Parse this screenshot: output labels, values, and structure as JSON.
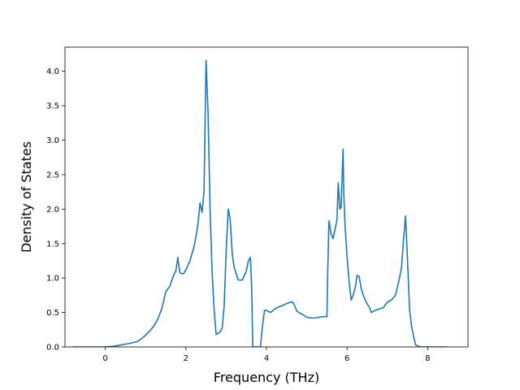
{
  "chart_data": {
    "type": "line",
    "title": "",
    "xlabel": "Frequency (THz)",
    "ylabel": "Density of States",
    "xlim": [
      -1.0,
      9.0
    ],
    "ylim": [
      0.0,
      4.35
    ],
    "grid": false,
    "x_ticks": [
      0,
      2,
      4,
      6,
      8
    ],
    "y_ticks": [
      0.0,
      0.5,
      1.0,
      1.5,
      2.0,
      2.5,
      3.0,
      3.5,
      4.0
    ],
    "color": "#1f77b4",
    "series": [
      {
        "x": [
          -0.8,
          -0.5,
          -0.2,
          0.0,
          0.2,
          0.4,
          0.6,
          0.8,
          0.9,
          1.0,
          1.1,
          1.2,
          1.3,
          1.4,
          1.5,
          1.6,
          1.7,
          1.75,
          1.8,
          1.82,
          1.85,
          1.9,
          1.95,
          2.0,
          2.1,
          2.2,
          2.25,
          2.3,
          2.35,
          2.4,
          2.45,
          2.5,
          2.55,
          2.6,
          2.65,
          2.7,
          2.75,
          2.8,
          2.85,
          2.9,
          2.95,
          3.0,
          3.05,
          3.1,
          3.15,
          3.2,
          3.3,
          3.4,
          3.5,
          3.55,
          3.6,
          3.63,
          3.66,
          3.7,
          3.75,
          3.8,
          3.85,
          3.9,
          3.95,
          4.0,
          4.1,
          4.2,
          4.3,
          4.4,
          4.5,
          4.6,
          4.65,
          4.7,
          4.75,
          4.8,
          4.9,
          5.0,
          5.1,
          5.2,
          5.3,
          5.4,
          5.5,
          5.52,
          5.55,
          5.6,
          5.65,
          5.7,
          5.75,
          5.78,
          5.82,
          5.85,
          5.88,
          5.9,
          5.92,
          5.95,
          6.0,
          6.05,
          6.1,
          6.15,
          6.2,
          6.25,
          6.3,
          6.35,
          6.4,
          6.5,
          6.55,
          6.6,
          6.7,
          6.8,
          6.9,
          7.0,
          7.1,
          7.2,
          7.3,
          7.35,
          7.4,
          7.45,
          7.5,
          7.55,
          7.6,
          7.65,
          7.7,
          7.8,
          8.0,
          8.2,
          8.5
        ],
        "y": [
          0.0,
          0.0,
          0.0,
          0.0,
          0.01,
          0.03,
          0.05,
          0.08,
          0.12,
          0.17,
          0.23,
          0.3,
          0.4,
          0.55,
          0.8,
          0.88,
          1.05,
          1.1,
          1.3,
          1.2,
          1.08,
          1.06,
          1.07,
          1.12,
          1.25,
          1.45,
          1.6,
          1.78,
          2.09,
          1.95,
          2.25,
          4.16,
          3.4,
          2.0,
          1.1,
          0.55,
          0.18,
          0.2,
          0.22,
          0.27,
          0.6,
          1.4,
          2.0,
          1.85,
          1.35,
          1.15,
          0.97,
          0.97,
          1.1,
          1.25,
          1.3,
          0.9,
          0.0,
          0.0,
          0.0,
          0.0,
          0.0,
          0.3,
          0.53,
          0.53,
          0.5,
          0.55,
          0.58,
          0.6,
          0.63,
          0.65,
          0.65,
          0.6,
          0.52,
          0.5,
          0.47,
          0.43,
          0.42,
          0.42,
          0.43,
          0.44,
          0.44,
          1.1,
          1.83,
          1.65,
          1.57,
          1.7,
          1.85,
          2.38,
          2.0,
          2.02,
          2.55,
          2.87,
          2.2,
          1.75,
          1.3,
          0.95,
          0.68,
          0.75,
          0.85,
          1.04,
          1.02,
          0.85,
          0.75,
          0.62,
          0.58,
          0.5,
          0.53,
          0.55,
          0.57,
          0.65,
          0.68,
          0.75,
          1.0,
          1.15,
          1.55,
          1.9,
          1.25,
          0.55,
          0.3,
          0.15,
          0.03,
          0.0,
          0.0,
          0.0,
          0.0
        ]
      }
    ]
  }
}
